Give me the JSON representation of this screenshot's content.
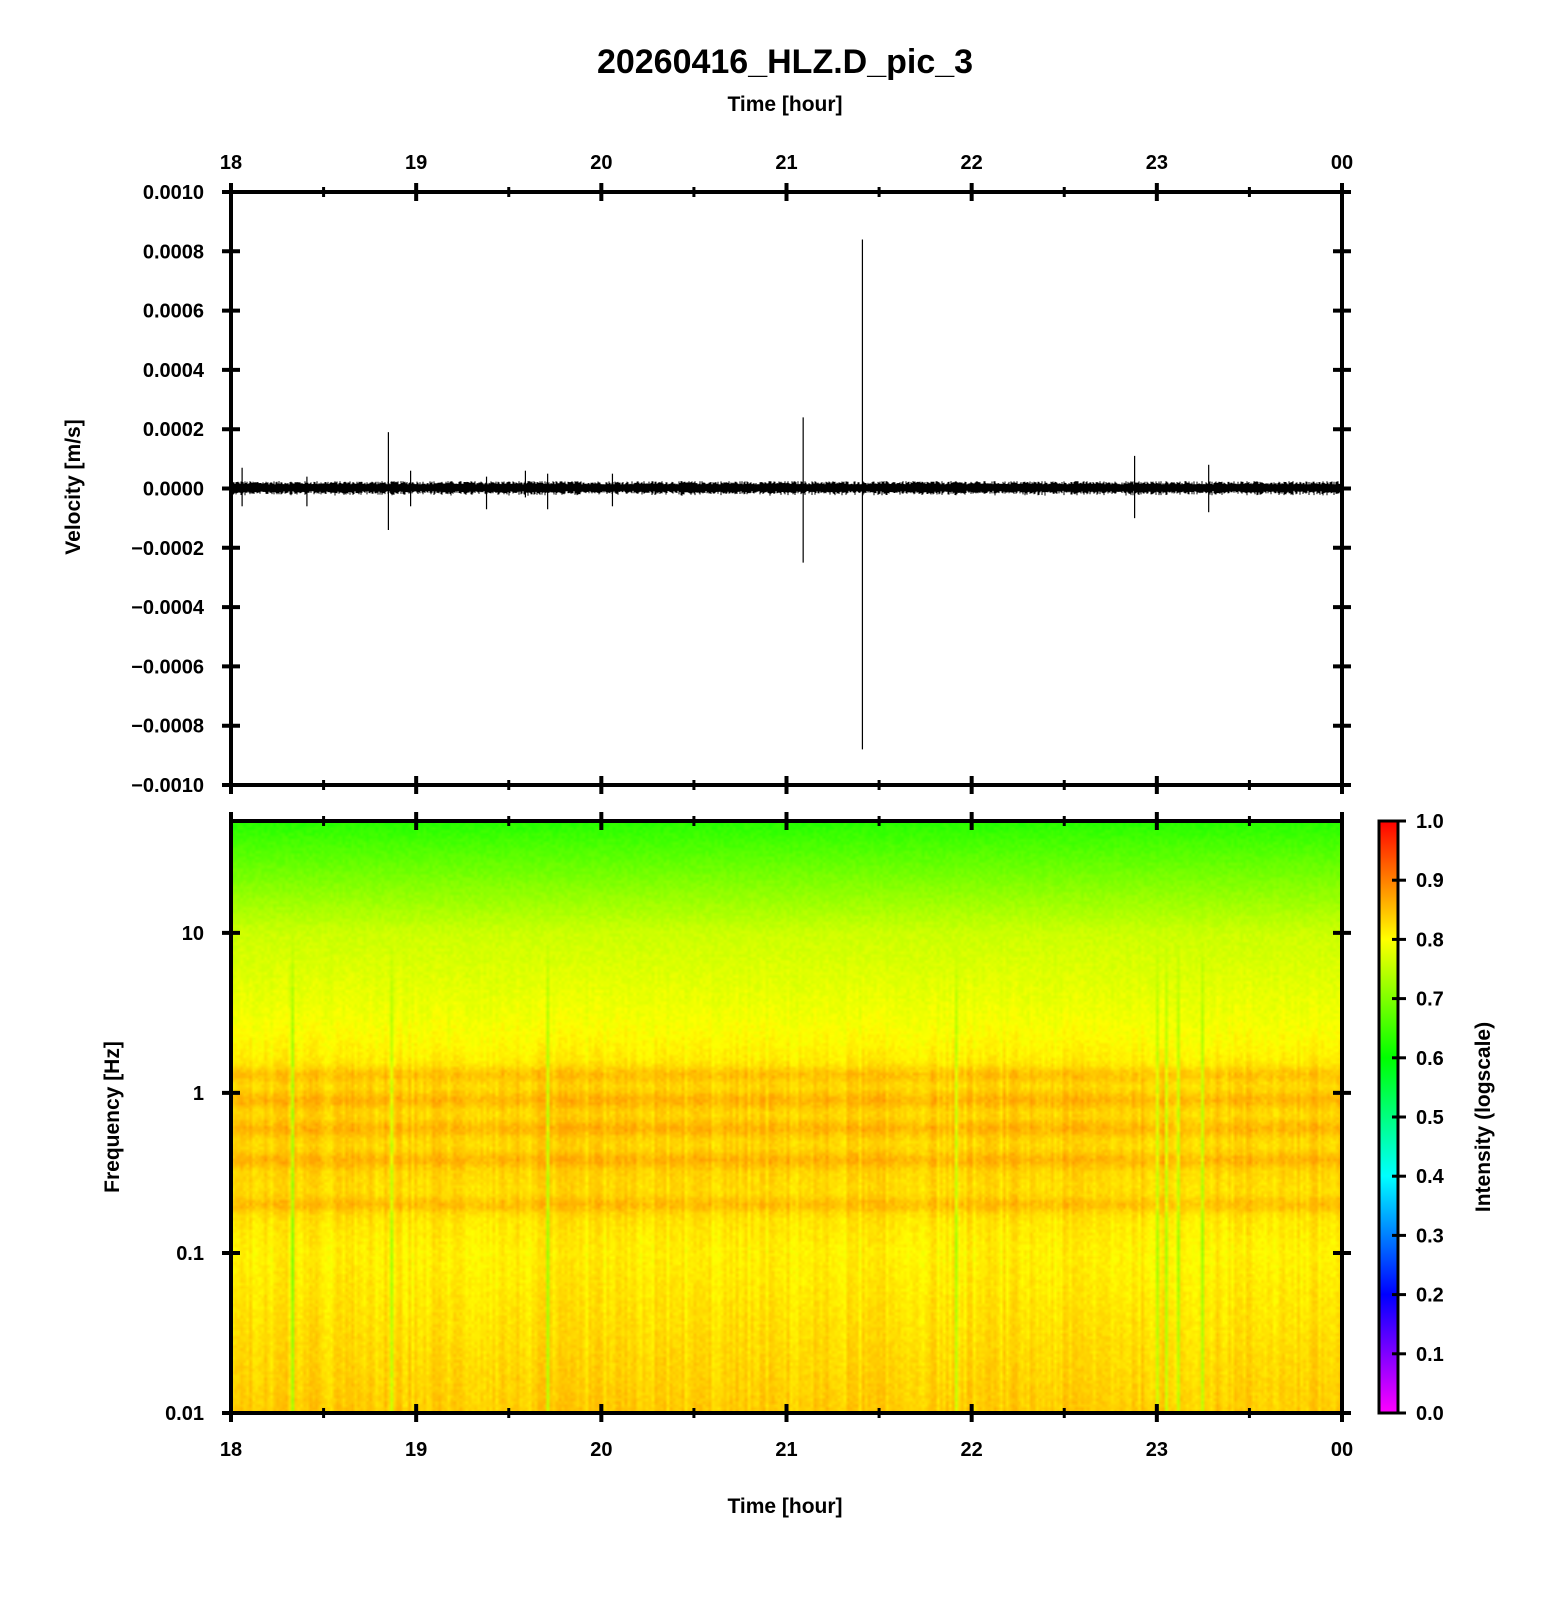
{
  "figure": {
    "title": "20260416_HLZ.D_pic_3",
    "top_xlabel": "Time [hour]",
    "bottom_xlabel": "Time [hour]"
  },
  "chart_data": [
    {
      "type": "line",
      "name": "waveform",
      "ylabel": "Velocity [m/s]",
      "x_tick_labels": [
        "18",
        "19",
        "20",
        "21",
        "22",
        "23",
        "00"
      ],
      "x_ticks_hours": [
        18,
        19,
        20,
        21,
        22,
        23,
        24
      ],
      "xlim_hours": [
        18,
        24
      ],
      "ylim": [
        -0.001,
        0.001
      ],
      "y_tick_labels": [
        "0.0010",
        "0.0008",
        "0.0006",
        "0.0004",
        "0.0002",
        "0.0000",
        "−0.0002",
        "−0.0004",
        "−0.0006",
        "−0.0008",
        "−0.0010"
      ],
      "y_ticks": [
        0.001,
        0.0008,
        0.0006,
        0.0004,
        0.0002,
        0.0,
        -0.0002,
        -0.0004,
        -0.0006,
        -0.0008,
        -0.001
      ],
      "noise_amplitude": 2.5e-05,
      "spikes": [
        {
          "t": 18.06,
          "max": 7e-05,
          "min": -6e-05
        },
        {
          "t": 18.41,
          "max": 4e-05,
          "min": -6e-05
        },
        {
          "t": 18.85,
          "max": 0.00019,
          "min": -0.00014
        },
        {
          "t": 18.97,
          "max": 6e-05,
          "min": -6e-05
        },
        {
          "t": 19.38,
          "max": 4e-05,
          "min": -7e-05
        },
        {
          "t": 19.59,
          "max": 6e-05,
          "min": -3e-05
        },
        {
          "t": 19.71,
          "max": 5e-05,
          "min": -7e-05
        },
        {
          "t": 20.06,
          "max": 5e-05,
          "min": -6e-05
        },
        {
          "t": 21.09,
          "max": 0.00024,
          "min": -0.00025
        },
        {
          "t": 21.41,
          "max": 0.00084,
          "min": -0.00088
        },
        {
          "t": 22.88,
          "max": 0.00011,
          "min": -0.0001
        },
        {
          "t": 23.28,
          "max": 8e-05,
          "min": -8e-05
        }
      ]
    },
    {
      "type": "heatmap",
      "name": "spectrogram",
      "ylabel": "Frequency [Hz]",
      "y_scale": "log",
      "ylim_hz": [
        0.01,
        50
      ],
      "y_tick_labels": [
        "10",
        "1",
        "0.1",
        "0.01"
      ],
      "y_ticks_hz": [
        10,
        1,
        0.1,
        0.01
      ],
      "x_tick_labels": [
        "18",
        "19",
        "20",
        "21",
        "22",
        "23",
        "00"
      ],
      "x_ticks_hours": [
        18,
        19,
        20,
        21,
        22,
        23,
        24
      ],
      "xlim_hours": [
        18,
        24
      ],
      "intensity_profile": [
        {
          "hz": 50,
          "intensity": 0.63
        },
        {
          "hz": 10,
          "intensity": 0.76
        },
        {
          "hz": 3,
          "intensity": 0.79
        },
        {
          "hz": 1,
          "intensity": 0.83
        },
        {
          "hz": 0.3,
          "intensity": 0.83
        },
        {
          "hz": 0.1,
          "intensity": 0.81
        },
        {
          "hz": 0.01,
          "intensity": 0.84
        }
      ],
      "bright_bands_hz": [
        1.3,
        0.9,
        0.6,
        0.38,
        0.2
      ],
      "colorbar": {
        "label": "Intensity (logscale)",
        "range": [
          0.0,
          1.0
        ],
        "tick_labels": [
          "1.0",
          "0.9",
          "0.8",
          "0.7",
          "0.6",
          "0.5",
          "0.4",
          "0.3",
          "0.2",
          "0.1",
          "0.0"
        ],
        "ticks": [
          1.0,
          0.9,
          0.8,
          0.7,
          0.6,
          0.5,
          0.4,
          0.3,
          0.2,
          0.1,
          0.0
        ],
        "colors": [
          "#ff00ff",
          "#0000ff",
          "#00ffff",
          "#00ff00",
          "#ffff00",
          "#ff0000"
        ]
      }
    }
  ]
}
